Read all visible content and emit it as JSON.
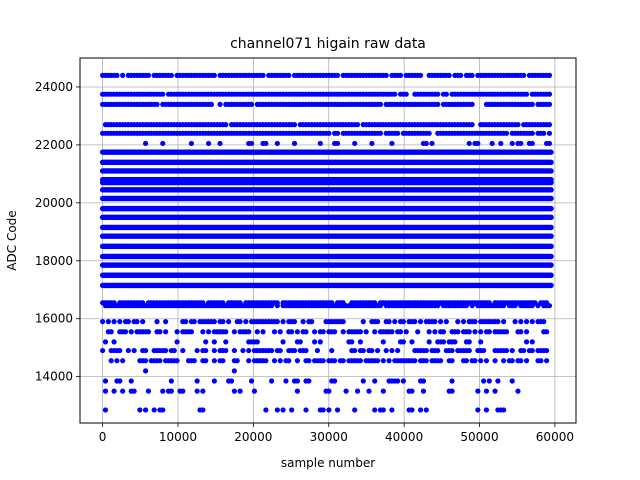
{
  "chart_data": {
    "type": "scatter",
    "title": "channel071 higain raw data",
    "xlabel": "sample number",
    "ylabel": "ADC Code",
    "xlim": [
      -3000,
      62800
    ],
    "ylim": [
      12400,
      25000
    ],
    "x_ticks": [
      0,
      10000,
      20000,
      30000,
      40000,
      50000,
      60000
    ],
    "y_ticks": [
      14000,
      16000,
      18000,
      20000,
      22000,
      24000
    ],
    "grid": true,
    "marker_color": "#0000ff",
    "x_range": [
      0,
      59500
    ],
    "levels": [
      {
        "y": 24400,
        "density": "dense"
      },
      {
        "y": 23750,
        "density": "dense"
      },
      {
        "y": 23400,
        "density": "dense"
      },
      {
        "y": 22700,
        "density": "dense"
      },
      {
        "y": 22400,
        "density": "dense"
      },
      {
        "y": 22050,
        "density": "sparse"
      },
      {
        "y": 21750,
        "density": "full"
      },
      {
        "y": 21400,
        "density": "full"
      },
      {
        "y": 21100,
        "density": "full"
      },
      {
        "y": 20800,
        "density": "full"
      },
      {
        "y": 20700,
        "density": "full"
      },
      {
        "y": 20450,
        "density": "full"
      },
      {
        "y": 20150,
        "density": "full"
      },
      {
        "y": 19800,
        "density": "full"
      },
      {
        "y": 19500,
        "density": "full"
      },
      {
        "y": 19150,
        "density": "full"
      },
      {
        "y": 18850,
        "density": "full"
      },
      {
        "y": 18500,
        "density": "full"
      },
      {
        "y": 18150,
        "density": "full"
      },
      {
        "y": 17850,
        "density": "full"
      },
      {
        "y": 17500,
        "density": "full"
      },
      {
        "y": 17150,
        "density": "full"
      },
      {
        "y": 16550,
        "density": "dense"
      },
      {
        "y": 16450,
        "density": "dense"
      },
      {
        "y": 15900,
        "density": "medium"
      },
      {
        "y": 15550,
        "density": "medium"
      },
      {
        "y": 15200,
        "density": "sparse"
      },
      {
        "y": 14900,
        "density": "medium"
      },
      {
        "y": 14550,
        "density": "medium"
      },
      {
        "y": 14200,
        "density": "rare"
      },
      {
        "y": 13850,
        "density": "sparse"
      },
      {
        "y": 13500,
        "density": "sparse"
      },
      {
        "y": 12850,
        "density": "sparse"
      }
    ]
  }
}
